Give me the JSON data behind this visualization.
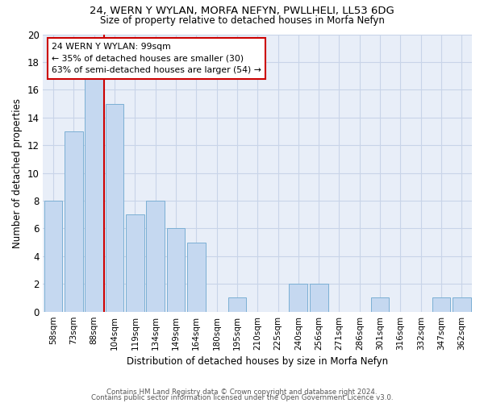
{
  "title1": "24, WERN Y WYLAN, MORFA NEFYN, PWLLHELI, LL53 6DG",
  "title2": "Size of property relative to detached houses in Morfa Nefyn",
  "xlabel": "Distribution of detached houses by size in Morfa Nefyn",
  "ylabel": "Number of detached properties",
  "categories": [
    "58sqm",
    "73sqm",
    "88sqm",
    "104sqm",
    "119sqm",
    "134sqm",
    "149sqm",
    "164sqm",
    "180sqm",
    "195sqm",
    "210sqm",
    "225sqm",
    "240sqm",
    "256sqm",
    "271sqm",
    "286sqm",
    "301sqm",
    "316sqm",
    "332sqm",
    "347sqm",
    "362sqm"
  ],
  "values": [
    8,
    13,
    17,
    15,
    7,
    8,
    6,
    5,
    0,
    1,
    0,
    0,
    2,
    2,
    0,
    0,
    1,
    0,
    0,
    1,
    1
  ],
  "bar_color": "#c5d8f0",
  "bar_edge_color": "#7bafd4",
  "ylim": [
    0,
    20
  ],
  "yticks": [
    0,
    2,
    4,
    6,
    8,
    10,
    12,
    14,
    16,
    18,
    20
  ],
  "property_line_label": "24 WERN Y WYLAN: 99sqm",
  "annotation_line1": "← 35% of detached houses are smaller (30)",
  "annotation_line2": "63% of semi-detached houses are larger (54) →",
  "annotation_box_color": "#ffffff",
  "annotation_box_edge_color": "#cc0000",
  "vline_color": "#cc0000",
  "grid_color": "#c8d4e8",
  "bg_color": "#e8eef8",
  "footer1": "Contains HM Land Registry data © Crown copyright and database right 2024.",
  "footer2": "Contains public sector information licensed under the Open Government Licence v3.0."
}
